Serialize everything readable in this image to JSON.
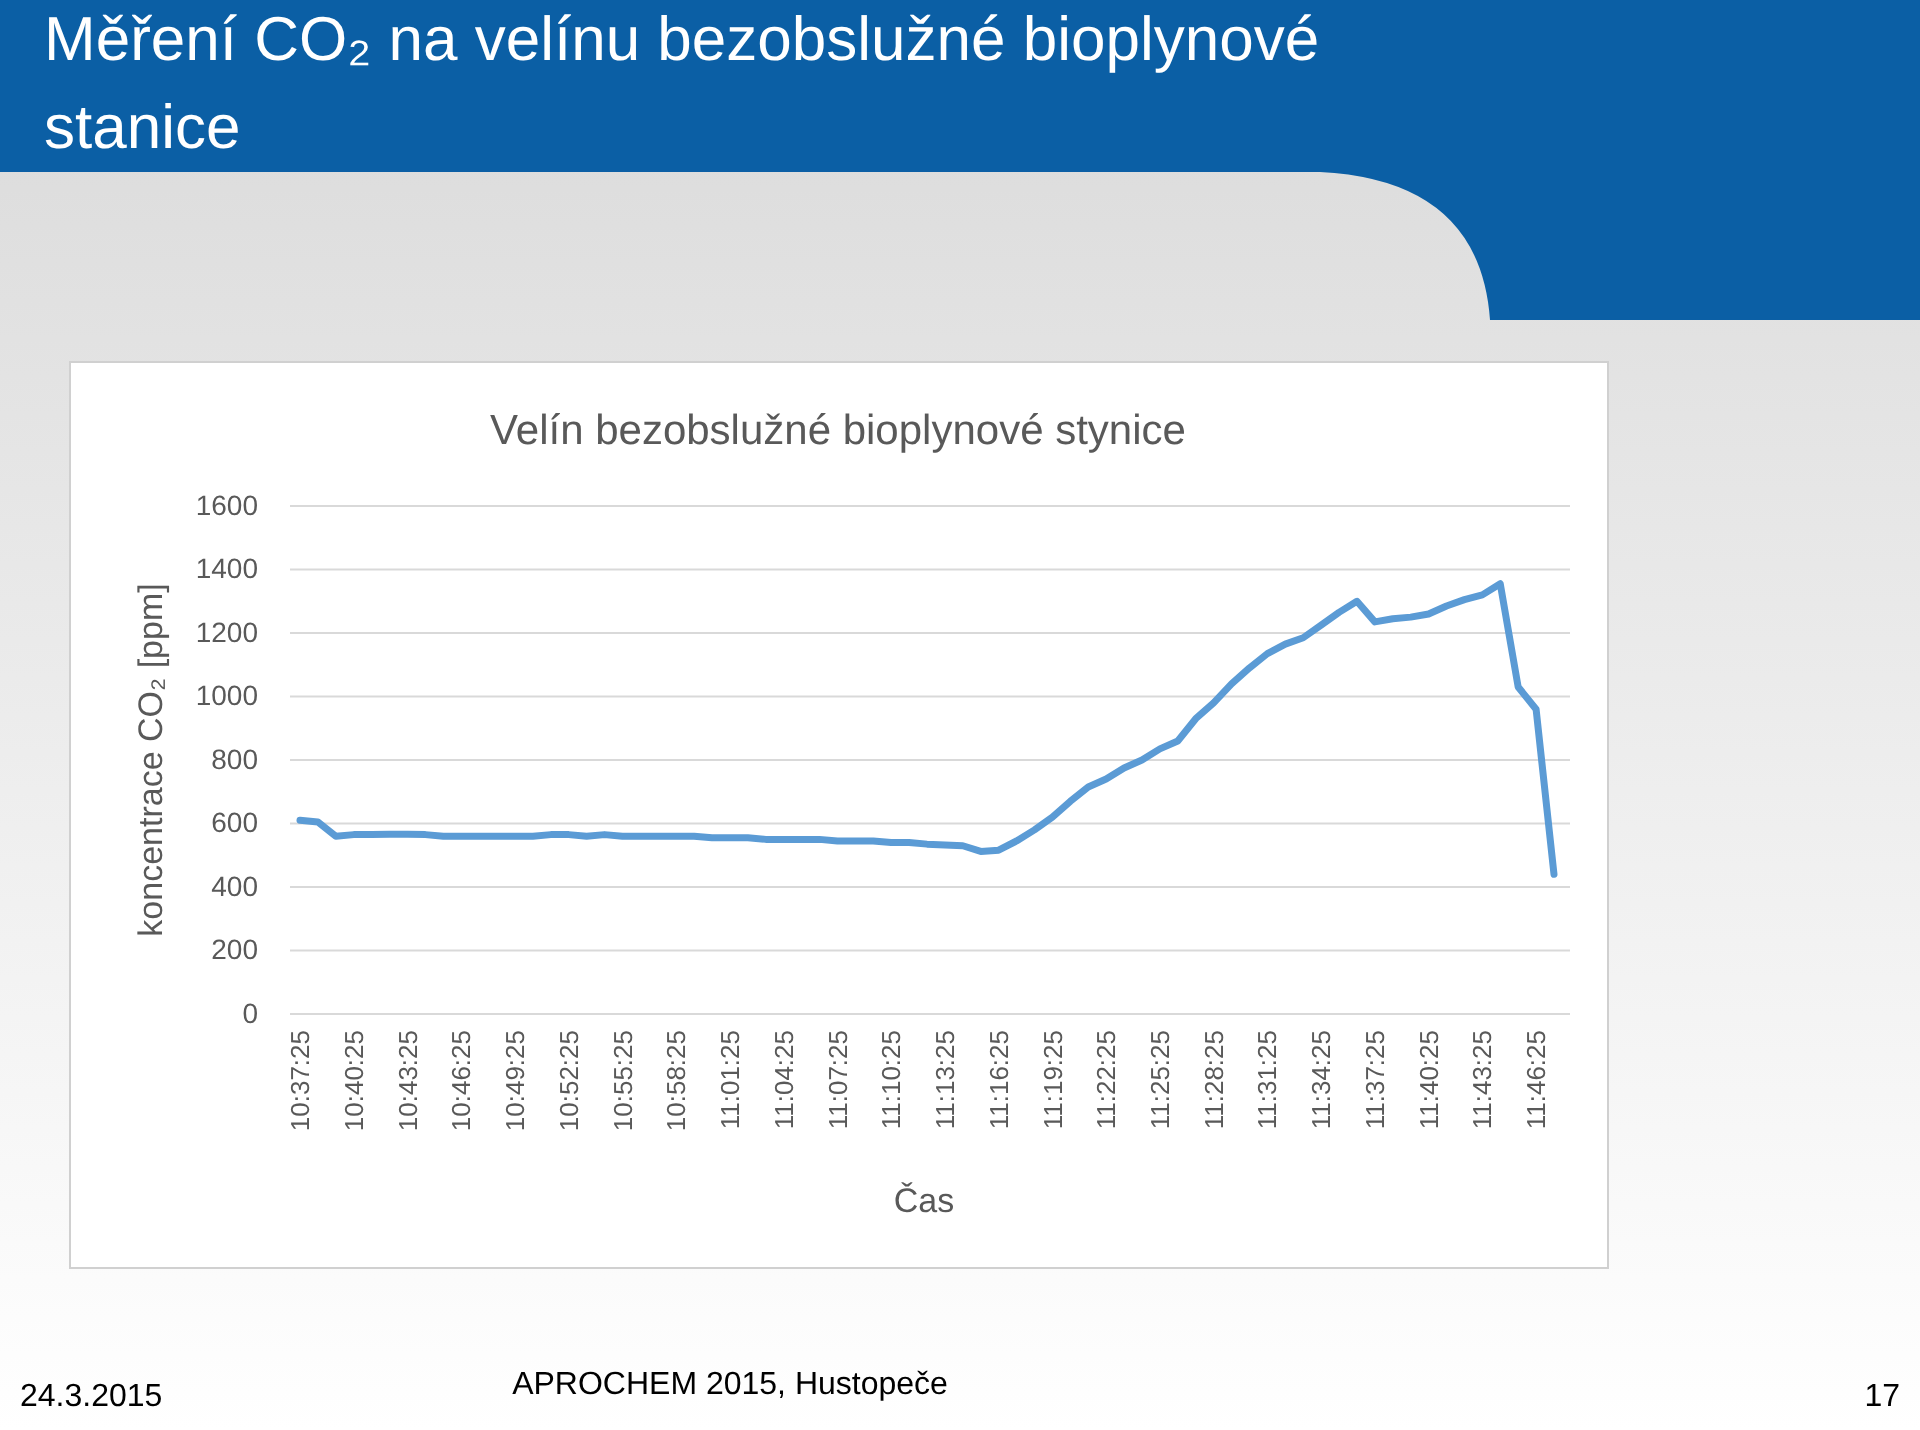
{
  "chart_data": {
    "type": "line",
    "title": "Měření CO₂ na velínu bezobslužné bioplynové stanice",
    "subtitle": "Velín bezobslužné bioplynové stynice",
    "xlabel": "Čas",
    "ylabel": "koncentrace CO₂ [ppm]",
    "annotations": [
      "24.3.2015",
      "APROCHEM 2015, Hustopeče",
      "17"
    ],
    "categories": [
      "10:37:25",
      null,
      null,
      "10:40:25",
      null,
      null,
      "10:43:25",
      null,
      null,
      "10:46:25",
      null,
      null,
      "10:49:25",
      null,
      null,
      "10:52:25",
      null,
      null,
      "10:55:25",
      null,
      null,
      "10:58:25",
      null,
      null,
      "11:01:25",
      null,
      null,
      "11:04:25",
      null,
      null,
      "11:07:25",
      null,
      null,
      "11:10:25",
      null,
      null,
      "11:13:25",
      null,
      null,
      "11:16:25",
      null,
      null,
      "11:19:25",
      null,
      null,
      "11:22:25",
      null,
      null,
      "11:25:25",
      null,
      null,
      "11:28:25",
      null,
      null,
      "11:31:25",
      null,
      null,
      "11:34:25",
      null,
      null,
      "11:37:25",
      null,
      null,
      "11:40:25",
      null,
      null,
      "11:43:25",
      null,
      null,
      "11:46:25",
      null
    ],
    "series": [
      {
        "color": "#5b9bd5",
        "values": [
          610,
          605,
          560,
          565,
          565,
          566,
          566,
          565,
          560,
          560,
          560,
          560,
          560,
          560,
          565,
          565,
          560,
          565,
          560,
          560,
          560,
          560,
          560,
          555,
          555,
          555,
          550,
          550,
          550,
          550,
          545,
          545,
          545,
          540,
          540,
          535,
          532,
          530,
          512,
          516,
          545,
          580,
          620,
          670,
          715,
          740,
          775,
          800,
          835,
          860,
          930,
          980,
          1040,
          1090,
          1135,
          1165,
          1185,
          1225,
          1265,
          1300,
          1235,
          1245,
          1250,
          1260,
          1285,
          1305,
          1320,
          1355,
          1030,
          960,
          440
        ]
      }
    ],
    "ylim": [
      0,
      1600
    ],
    "yticks": [
      0,
      200,
      400,
      600,
      800,
      1000,
      1200,
      1400,
      1600
    ],
    "grid": "y",
    "marker": "none",
    "line_style": "solid"
  }
}
